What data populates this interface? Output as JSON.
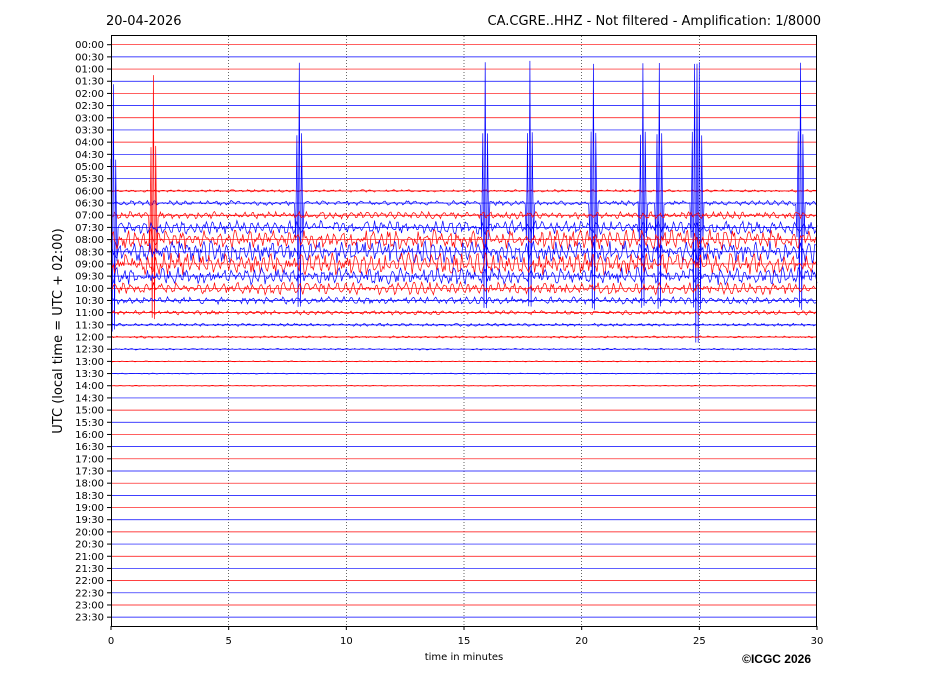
{
  "header": {
    "date": "20-04-2026",
    "station_title": "CA.CGRE..HHZ - Not filtered - Amplification: 1/8000"
  },
  "copyright": "©ICGC 2026",
  "colors": {
    "trace_a": "#ff0000",
    "trace_b": "#0000ff",
    "grid": "#000000"
  },
  "chart_data": {
    "type": "line",
    "subtype": "helicorder",
    "xlabel": "time in minutes",
    "ylabel": "UTC (local time = UTC + 02:00)",
    "xlim": [
      0,
      30
    ],
    "xticks": [
      0,
      5,
      10,
      15,
      20,
      25,
      30
    ],
    "grid": "vertical dotted at x ticks",
    "rows": [
      "00:00",
      "00:30",
      "01:00",
      "01:30",
      "02:00",
      "02:30",
      "03:00",
      "03:30",
      "04:00",
      "04:30",
      "05:00",
      "05:30",
      "06:00",
      "06:30",
      "07:00",
      "07:30",
      "08:00",
      "08:30",
      "09:00",
      "09:30",
      "10:00",
      "10:30",
      "11:00",
      "11:30",
      "12:00",
      "12:30",
      "13:00",
      "13:30",
      "14:00",
      "14:30",
      "15:00",
      "15:30",
      "16:00",
      "16:30",
      "17:00",
      "17:30",
      "18:00",
      "18:30",
      "19:00",
      "19:30",
      "20:00",
      "20:30",
      "21:00",
      "21:30",
      "22:00",
      "22:30",
      "23:00",
      "23:30"
    ],
    "row_colors": "alternating red / blue starting with red",
    "activity_rows": [
      "06:00",
      "06:30",
      "07:00",
      "07:30",
      "08:00",
      "08:30",
      "09:00",
      "09:30",
      "10:00",
      "10:30",
      "11:00",
      "11:30",
      "12:00",
      "12:30",
      "13:00",
      "13:30",
      "14:00"
    ],
    "large_spikes": [
      {
        "row": "07:30",
        "minute": 0.1
      },
      {
        "row": "07:00",
        "minute": 1.8
      },
      {
        "row": "06:30",
        "minute": 8.0
      },
      {
        "row": "06:30",
        "minute": 15.9
      },
      {
        "row": "06:30",
        "minute": 17.8
      },
      {
        "row": "06:30",
        "minute": 20.5
      },
      {
        "row": "06:30",
        "minute": 22.6
      },
      {
        "row": "06:30",
        "minute": 23.3
      },
      {
        "row": "06:30",
        "minute": 24.8
      },
      {
        "row": "06:30",
        "minute": 25.0
      },
      {
        "row": "06:30",
        "minute": 29.3
      }
    ]
  }
}
